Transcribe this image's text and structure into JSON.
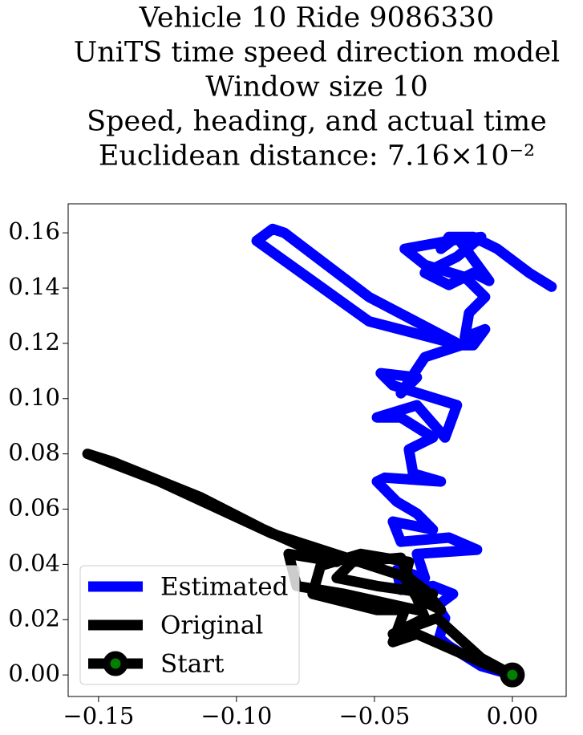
{
  "chart_data": {
    "type": "line",
    "title": [
      "Vehicle 10 Ride 9086330",
      "UniTS time speed direction model",
      "Window size 10",
      "Speed, heading, and actual time",
      "Euclidean distance: 7.16×10⁻²"
    ],
    "xlim": [
      -0.161,
      0.0195
    ],
    "ylim": [
      -0.0078,
      0.1705
    ],
    "xticks": [
      {
        "value": -0.15,
        "label": "−0.15"
      },
      {
        "value": -0.1,
        "label": "−0.10"
      },
      {
        "value": -0.05,
        "label": "−0.05"
      },
      {
        "value": 0,
        "label": "0.00"
      }
    ],
    "yticks": [
      {
        "value": 0,
        "label": "0.00"
      },
      {
        "value": 0.02,
        "label": "0.02"
      },
      {
        "value": 0.04,
        "label": "0.04"
      },
      {
        "value": 0.06,
        "label": "0.06"
      },
      {
        "value": 0.08,
        "label": "0.08"
      },
      {
        "value": 0.1,
        "label": "0.10"
      },
      {
        "value": 0.12,
        "label": "0.12"
      },
      {
        "value": 0.14,
        "label": "0.14"
      },
      {
        "value": 0.16,
        "label": "0.16"
      }
    ],
    "legend": "lower left",
    "series": [
      {
        "name": "Estimated",
        "color": "#0000ff",
        "x": [
          0,
          -0.0113,
          -0.023,
          -0.0265,
          -0.0244,
          -0.0273,
          -0.0215,
          -0.0288,
          -0.0404,
          -0.0419,
          -0.0317,
          -0.0346,
          -0.0128,
          -0.023,
          -0.0404,
          -0.0433,
          -0.0288,
          -0.0346,
          -0.0419,
          -0.0491,
          -0.0462,
          -0.0259,
          -0.036,
          -0.0375,
          -0.0288,
          -0.0404,
          -0.0491,
          -0.0346,
          -0.0244,
          -0.0201,
          -0.0433,
          -0.0477,
          -0.0346,
          -0.0404,
          -0.0317,
          -0.0186,
          -0.052,
          -0.0927,
          -0.0869,
          -0.0826,
          -0.052,
          -0.0186,
          -0.0142,
          -0.0099,
          -0.0172,
          -0.0157,
          -0.0099,
          -0.0172,
          -0.0317,
          -0.039,
          -0.023,
          -0.0113,
          -0.0201,
          -0.0317,
          -0.023,
          -0.0142,
          -0.0084,
          -0.0201,
          -0.0259,
          -0.023,
          -0.0142,
          -0.0055,
          0.0061,
          0.0142
        ],
        "y": [
          0,
          0.0032,
          0.0105,
          0.0134,
          0.0206,
          0.025,
          0.0293,
          0.0322,
          0.0308,
          0.038,
          0.0351,
          0.0438,
          0.0453,
          0.0497,
          0.0482,
          0.0555,
          0.0526,
          0.0584,
          0.0627,
          0.07,
          0.0714,
          0.07,
          0.0729,
          0.0816,
          0.0859,
          0.0932,
          0.0932,
          0.0976,
          0.0859,
          0.0976,
          0.1048,
          0.1092,
          0.1077,
          0.1019,
          0.115,
          0.1193,
          0.128,
          0.1571,
          0.1614,
          0.16,
          0.1368,
          0.1193,
          0.1193,
          0.1251,
          0.1222,
          0.131,
          0.1368,
          0.144,
          0.1484,
          0.1542,
          0.1571,
          0.1585,
          0.1513,
          0.1455,
          0.1411,
          0.1455,
          0.1426,
          0.1585,
          0.1542,
          0.1585,
          0.1585,
          0.1542,
          0.1455,
          0.1405
        ]
      },
      {
        "name": "Original",
        "color": "#000000",
        "x": [
          0,
          -0.0113,
          -0.0346,
          -0.0433,
          -0.039,
          -0.0491,
          -0.0724,
          -0.0695,
          -0.055,
          -0.0375,
          -0.039,
          -0.0346,
          -0.0259,
          -0.0317,
          -0.0375,
          -0.087,
          -0.1279,
          -0.154,
          -0.145,
          -0.113,
          -0.09,
          -0.0637,
          -0.0811,
          -0.0782,
          -0.0608,
          -0.0346,
          -0.0288,
          -0.0491,
          -0.0637,
          -0.0579,
          -0.0404,
          -0.0317,
          -0.0433,
          -0.0273,
          -0.0113,
          0
        ],
        "y": [
          0,
          0.0046,
          0.0148,
          0.0119,
          0.0235,
          0.0235,
          0.0293,
          0.0395,
          0.0438,
          0.0409,
          0.0351,
          0.0279,
          0.0235,
          0.0308,
          0.0351,
          0.0511,
          0.07,
          0.08,
          0.0772,
          0.0643,
          0.0526,
          0.0409,
          0.0438,
          0.0322,
          0.0293,
          0.0235,
          0.0293,
          0.0322,
          0.0351,
          0.0409,
          0.0424,
          0.0206,
          0.0148,
          0.0206,
          0.0061,
          0
        ]
      },
      {
        "name": "Start",
        "color": "#000000",
        "marker": "circle",
        "marker_color": "#008000",
        "x": [
          0
        ],
        "y": [
          0
        ]
      }
    ]
  }
}
